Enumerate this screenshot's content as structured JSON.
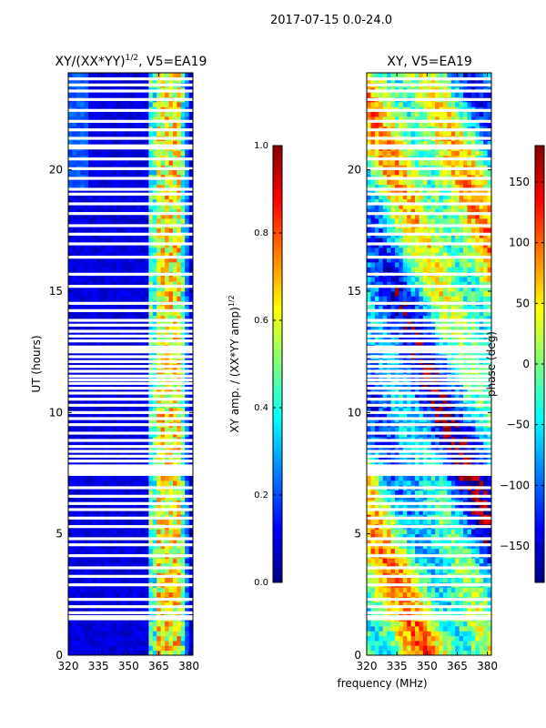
{
  "figure": {
    "suptitle": "2017-07-15 0.0-24.0",
    "shared_xlabel": "frequency (MHz)"
  },
  "colormap": {
    "name": "jet",
    "stops": [
      "#00007f",
      "#0000ff",
      "#007fff",
      "#00ffff",
      "#7fff7f",
      "#ffff00",
      "#ff7f00",
      "#ff0000",
      "#7f0000"
    ]
  },
  "chart_data": [
    {
      "type": "heatmap",
      "panel": "left",
      "title": "XY/(XX*YY)",
      "title_exponent": "1/2",
      "title_suffix": ", V5=EA19",
      "xlabel": "",
      "ylabel": "UT (hours)",
      "xlim": [
        320,
        382
      ],
      "ylim": [
        0,
        24
      ],
      "xticks": [
        320,
        335,
        350,
        365,
        380
      ],
      "yticks": [
        0,
        5,
        10,
        15,
        20
      ],
      "colorbar": {
        "label": "XY amp. / (XX*YY amp)",
        "label_exponent": "1/2",
        "range": [
          0.0,
          1.0
        ],
        "ticks": [
          "0.0",
          "0.2",
          "0.4",
          "0.6",
          "0.8",
          "1.0"
        ]
      },
      "description_values": {
        "background_level": 0.05,
        "hot_band_mhz": [
          360,
          378
        ],
        "hot_band_level": 0.55,
        "hot_line_mhz": [
          366,
          367,
          369,
          372,
          375
        ]
      }
    },
    {
      "type": "heatmap",
      "panel": "right",
      "title": "XY, V5=EA19",
      "xlabel": "",
      "ylabel": "",
      "xlim": [
        320,
        382
      ],
      "ylim": [
        0,
        24
      ],
      "xticks": [
        320,
        335,
        350,
        365,
        380
      ],
      "yticks": [
        0,
        5,
        10,
        15,
        20
      ],
      "colorbar": {
        "label": "phase (deg)",
        "range": [
          -180,
          180
        ],
        "ticks": [
          "150",
          "100",
          "50",
          "0",
          "−50",
          "−100",
          "−150"
        ],
        "tick_values": [
          150,
          100,
          50,
          0,
          -50,
          -100,
          -150
        ]
      }
    }
  ],
  "flagged_hours": [
    1.5,
    1.75,
    2.0,
    2.3,
    2.9,
    3.25,
    3.6,
    4.1,
    4.55,
    4.8,
    5.3,
    5.65,
    6.0,
    6.25,
    6.55,
    6.9,
    7.45,
    7.6,
    7.8,
    8.0,
    8.2,
    8.4,
    8.6,
    8.85,
    9.15,
    9.5,
    9.75,
    10.0,
    10.3,
    10.55,
    10.8,
    11.0,
    11.2,
    11.35,
    11.5,
    11.7,
    11.9,
    12.1,
    12.3,
    12.5,
    12.7,
    12.95,
    13.15,
    13.35,
    13.6,
    13.8,
    14.2,
    14.5,
    15.2,
    15.7,
    16.4,
    16.95,
    17.35,
    17.7,
    18.2,
    18.6,
    19.0,
    19.2,
    19.65,
    20.05,
    20.45,
    20.9,
    21.3,
    21.65,
    22.0,
    22.45,
    22.9,
    23.25,
    23.5,
    23.75
  ],
  "flagged_blocks": [
    [
      1.5,
      1.65
    ],
    [
      7.45,
      7.8
    ],
    [
      12.55,
      12.7
    ],
    [
      20.9,
      21.05
    ]
  ]
}
